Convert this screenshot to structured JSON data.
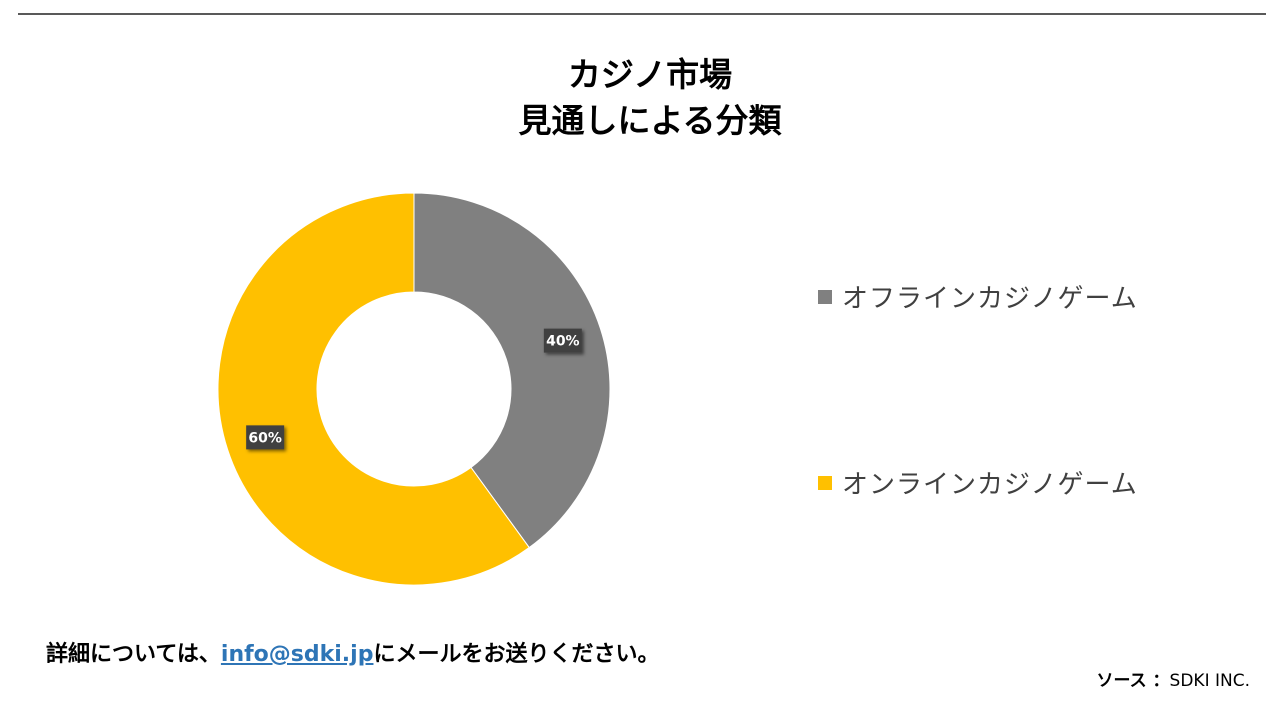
{
  "title_line1": "カジノ市場",
  "title_line2": "見通しによる分類",
  "chart_data": {
    "type": "pie",
    "donut": true,
    "title": "カジノ市場 見通しによる分類",
    "series": [
      {
        "name": "オフラインカジノゲーム",
        "value": 40,
        "label": "40%",
        "color": "#808080"
      },
      {
        "name": "オンラインカジノゲーム",
        "value": 60,
        "label": "60%",
        "color": "#ffc000"
      }
    ],
    "legend_position": "right"
  },
  "footer": {
    "prefix": "詳細については、",
    "email": "info@sdki.jp",
    "suffix": "にメールをお送りください。"
  },
  "source": {
    "label": "ソース ：",
    "value": "SDKI INC."
  }
}
